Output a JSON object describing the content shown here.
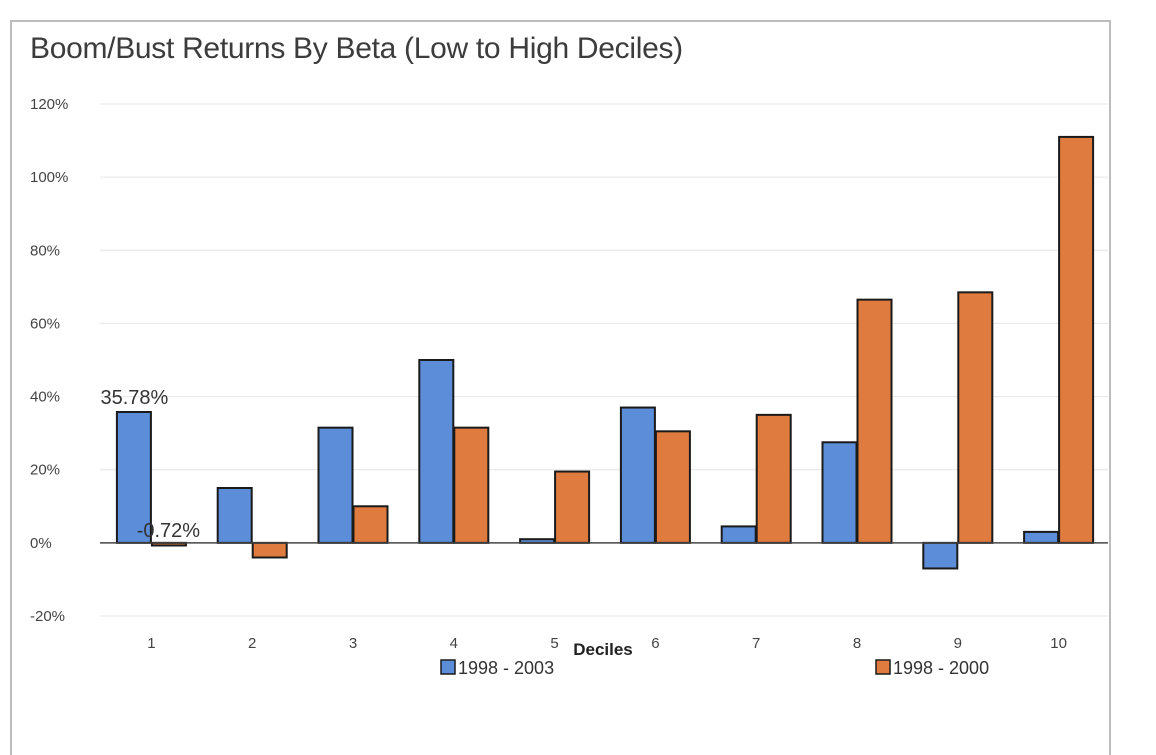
{
  "chart_data": {
    "type": "bar",
    "title": "Boom/Bust Returns By Beta (Low to High Deciles)",
    "xlabel": "Deciles",
    "ylabel": "",
    "categories": [
      "1",
      "2",
      "3",
      "4",
      "5",
      "6",
      "7",
      "8",
      "9",
      "10"
    ],
    "series": [
      {
        "name": "1998 - 2003",
        "color": "#5b8dd9",
        "values": [
          35.78,
          15,
          31.5,
          50,
          1,
          37,
          4.5,
          27.5,
          -7,
          3
        ]
      },
      {
        "name": "1998 - 2000",
        "color": "#e07b40",
        "values": [
          -0.72,
          -4,
          10,
          31.5,
          19.5,
          30.5,
          35,
          66.5,
          68.5,
          111
        ]
      }
    ],
    "ylim": [
      -20,
      120
    ],
    "yticks": [
      -20,
      0,
      20,
      40,
      60,
      80,
      100,
      120
    ],
    "ytick_labels": [
      "-20%",
      "0%",
      "20%",
      "40%",
      "60%",
      "80%",
      "100%",
      "120%"
    ],
    "data_labels": [
      {
        "series": 0,
        "index": 0,
        "text": "35.78%"
      },
      {
        "series": 1,
        "index": 0,
        "text": "-0.72%"
      }
    ],
    "grid": true,
    "legend_position": "bottom"
  }
}
